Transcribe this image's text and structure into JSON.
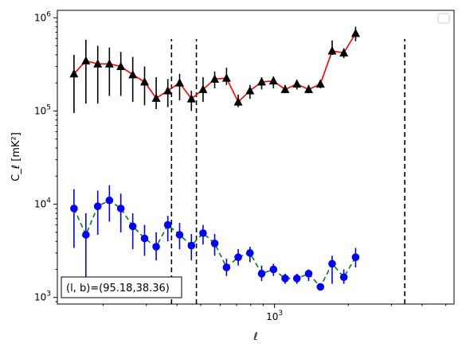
{
  "chart_data": {
    "type": "scatter",
    "xscale": "log",
    "yscale": "log",
    "xlim": [
      130,
      5400
    ],
    "ylim": [
      850,
      1200000
    ],
    "xlabel": "ℓ",
    "ylabel": "C_ℓ  [mK²]",
    "x_ticks": [
      {
        "value": 1000,
        "base": "10",
        "exp": "3"
      }
    ],
    "y_ticks": [
      {
        "value": 1000,
        "base": "10",
        "exp": "3"
      },
      {
        "value": 10000,
        "base": "10",
        "exp": "4"
      },
      {
        "value": 100000,
        "base": "10",
        "exp": "5"
      },
      {
        "value": 1000000,
        "base": "10",
        "exp": "6"
      }
    ],
    "vlines": [
      380,
      480,
      3400
    ],
    "legend": "top-right",
    "annotation": "(l, b)=(95.18,38.36)",
    "series": [
      {
        "marker": "triangle",
        "color": "#000000",
        "line_color": "#ff0000",
        "line_style": "solid",
        "points": [
          {
            "x": 152,
            "y": 250000,
            "lo": 95000,
            "hi": 400000
          },
          {
            "x": 170,
            "y": 345000,
            "lo": 120000,
            "hi": 580000
          },
          {
            "x": 190,
            "y": 320000,
            "lo": 120000,
            "hi": 500000
          },
          {
            "x": 212,
            "y": 320000,
            "lo": 145000,
            "hi": 480000
          },
          {
            "x": 236,
            "y": 300000,
            "lo": 145000,
            "hi": 430000
          },
          {
            "x": 264,
            "y": 245000,
            "lo": 125000,
            "hi": 380000
          },
          {
            "x": 295,
            "y": 205000,
            "lo": 115000,
            "hi": 300000
          },
          {
            "x": 329,
            "y": 137000,
            "lo": 105000,
            "hi": 230000
          },
          {
            "x": 367,
            "y": 165000,
            "lo": 110000,
            "hi": 220000
          },
          {
            "x": 410,
            "y": 200000,
            "lo": 130000,
            "hi": 250000
          },
          {
            "x": 458,
            "y": 135000,
            "lo": 100000,
            "hi": 165000
          },
          {
            "x": 511,
            "y": 170000,
            "lo": 125000,
            "hi": 230000
          },
          {
            "x": 570,
            "y": 220000,
            "lo": 175000,
            "hi": 265000
          },
          {
            "x": 637,
            "y": 225000,
            "lo": 190000,
            "hi": 290000
          },
          {
            "x": 711,
            "y": 125000,
            "lo": 110000,
            "hi": 150000
          },
          {
            "x": 794,
            "y": 165000,
            "lo": 135000,
            "hi": 190000
          },
          {
            "x": 886,
            "y": 205000,
            "lo": 170000,
            "hi": 230000
          },
          {
            "x": 990,
            "y": 210000,
            "lo": 175000,
            "hi": 235000
          },
          {
            "x": 1105,
            "y": 170000,
            "lo": 155000,
            "hi": 190000
          },
          {
            "x": 1234,
            "y": 195000,
            "lo": 170000,
            "hi": 215000
          },
          {
            "x": 1378,
            "y": 170000,
            "lo": 155000,
            "hi": 190000
          },
          {
            "x": 1539,
            "y": 195000,
            "lo": 175000,
            "hi": 215000
          },
          {
            "x": 1718,
            "y": 440000,
            "lo": 400000,
            "hi": 570000
          },
          {
            "x": 1918,
            "y": 420000,
            "lo": 370000,
            "hi": 470000
          },
          {
            "x": 2142,
            "y": 680000,
            "lo": 560000,
            "hi": 800000
          }
        ]
      },
      {
        "marker": "circle",
        "color": "#0000ff",
        "line_color": "#008000",
        "line_style": "dashed",
        "points": [
          {
            "x": 152,
            "y": 9000,
            "lo": 3400,
            "hi": 14500
          },
          {
            "x": 170,
            "y": 4700,
            "lo": 1000,
            "hi": 8000
          },
          {
            "x": 190,
            "y": 9500,
            "lo": 4700,
            "hi": 14000
          },
          {
            "x": 212,
            "y": 11000,
            "lo": 6500,
            "hi": 16000
          },
          {
            "x": 236,
            "y": 9000,
            "lo": 5000,
            "hi": 13000
          },
          {
            "x": 264,
            "y": 5800,
            "lo": 3300,
            "hi": 8000
          },
          {
            "x": 295,
            "y": 4300,
            "lo": 2800,
            "hi": 6000
          },
          {
            "x": 329,
            "y": 3500,
            "lo": 2500,
            "hi": 5000
          },
          {
            "x": 367,
            "y": 6000,
            "lo": 4000,
            "hi": 7500
          },
          {
            "x": 410,
            "y": 4700,
            "lo": 3300,
            "hi": 6300
          },
          {
            "x": 458,
            "y": 3600,
            "lo": 2500,
            "hi": 4800
          },
          {
            "x": 511,
            "y": 4900,
            "lo": 3700,
            "hi": 6000
          },
          {
            "x": 570,
            "y": 3800,
            "lo": 2800,
            "hi": 4800
          },
          {
            "x": 637,
            "y": 2100,
            "lo": 1700,
            "hi": 2600
          },
          {
            "x": 711,
            "y": 2700,
            "lo": 2200,
            "hi": 3300
          },
          {
            "x": 794,
            "y": 3000,
            "lo": 2400,
            "hi": 3500
          },
          {
            "x": 886,
            "y": 1800,
            "lo": 1500,
            "hi": 2200
          },
          {
            "x": 990,
            "y": 2000,
            "lo": 1700,
            "hi": 2300
          },
          {
            "x": 1105,
            "y": 1600,
            "lo": 1400,
            "hi": 1800
          },
          {
            "x": 1234,
            "y": 1600,
            "lo": 1400,
            "hi": 1800
          },
          {
            "x": 1378,
            "y": 1800,
            "lo": 1500,
            "hi": 2000
          },
          {
            "x": 1539,
            "y": 1300,
            "lo": 1200,
            "hi": 1400
          },
          {
            "x": 1718,
            "y": 2300,
            "lo": 1400,
            "hi": 2800
          },
          {
            "x": 1918,
            "y": 1650,
            "lo": 1400,
            "hi": 2000
          },
          {
            "x": 2142,
            "y": 2700,
            "lo": 2100,
            "hi": 3400
          }
        ]
      }
    ]
  }
}
